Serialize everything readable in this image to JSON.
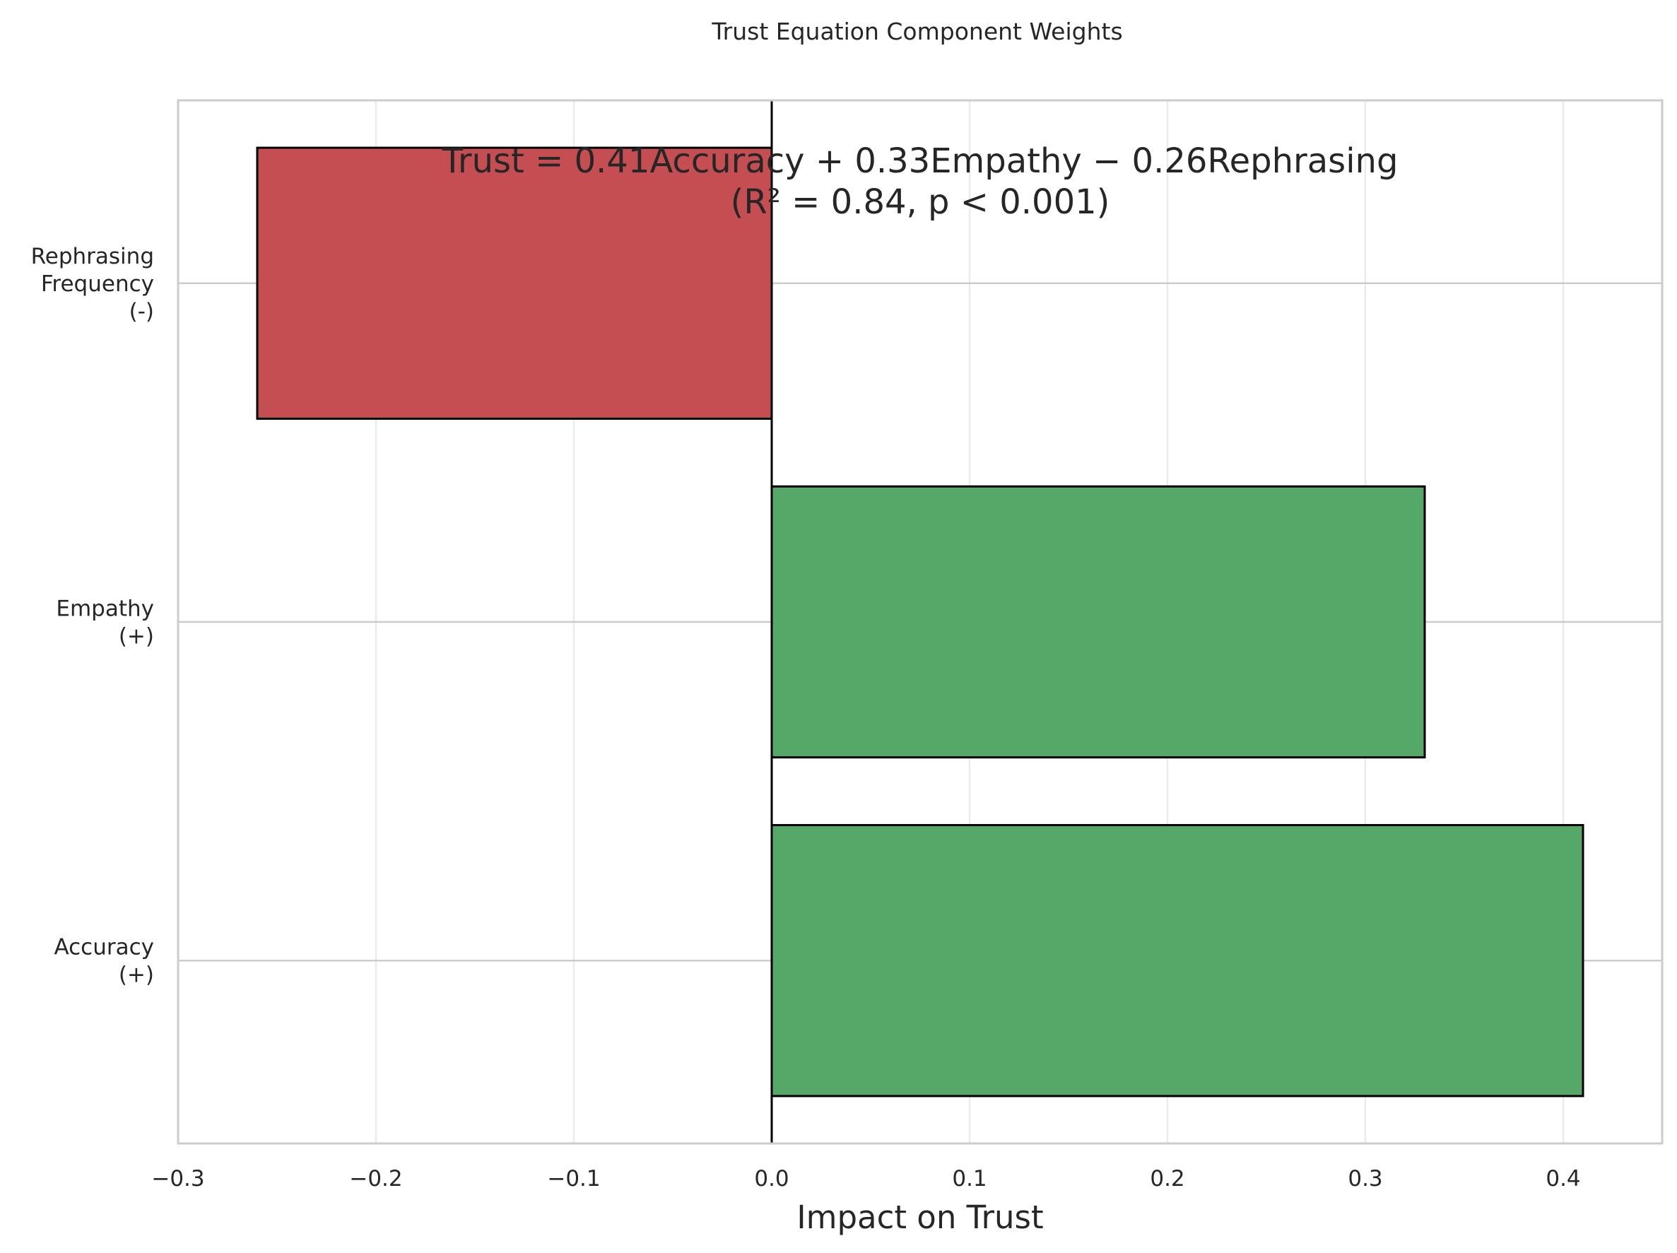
{
  "chart_data": {
    "type": "bar",
    "orientation": "horizontal",
    "title": "Trust Equation Component Weights",
    "xlabel": "Impact on Trust",
    "ylabel": "",
    "xlim": [
      -0.3,
      0.45
    ],
    "x_ticks": [
      -0.3,
      -0.2,
      -0.1,
      0.0,
      0.1,
      0.2,
      0.3,
      0.4
    ],
    "x_tick_labels": [
      "−0.3",
      "−0.2",
      "−0.1",
      "0.0",
      "0.1",
      "0.2",
      "0.3",
      "0.4"
    ],
    "grid": true,
    "categories": [
      {
        "lines": [
          "Accuracy",
          "(+)"
        ]
      },
      {
        "lines": [
          "Empathy",
          "(+)"
        ]
      },
      {
        "lines": [
          "Rephrasing",
          "Frequency",
          "(-)"
        ]
      }
    ],
    "values": [
      0.41,
      0.33,
      -0.26
    ],
    "colors": [
      "#55a868",
      "#55a868",
      "#c44e52"
    ],
    "annotation": {
      "line1": "Trust = 0.41Accuracy + 0.33Empathy − 0.26Rephrasing",
      "line2": "(R² = 0.84, p < 0.001)"
    }
  }
}
